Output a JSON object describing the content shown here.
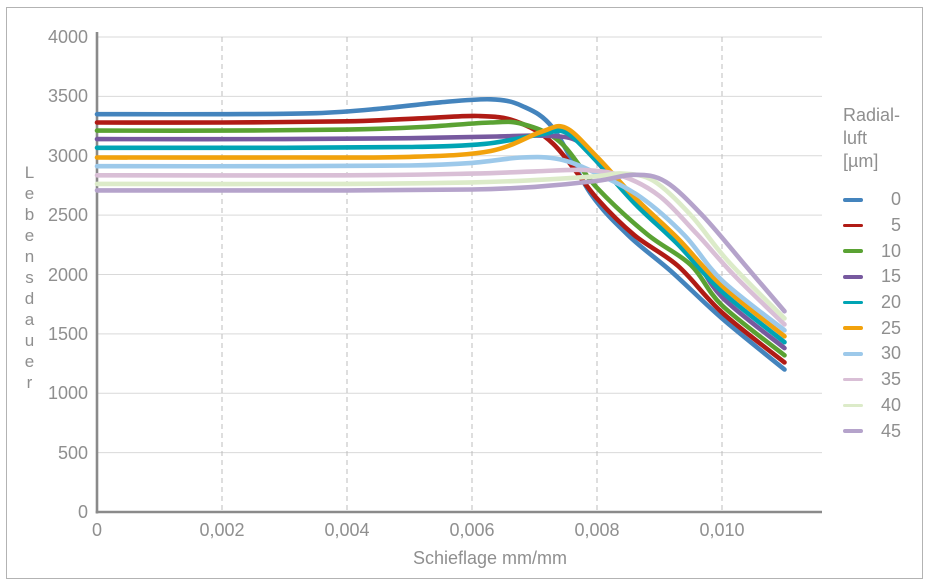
{
  "chart_data": {
    "type": "line",
    "title": "",
    "xlabel": "Schieflage mm/mm",
    "ylabel": "Lebensdauer",
    "xlim": [
      0,
      0.0116
    ],
    "ylim": [
      0,
      4000
    ],
    "grid": {
      "horizontal": "solid",
      "vertical": "dashed"
    },
    "x_ticks": [
      {
        "v": 0,
        "label": "0"
      },
      {
        "v": 0.002,
        "label": "0,002"
      },
      {
        "v": 0.004,
        "label": "0,004"
      },
      {
        "v": 0.006,
        "label": "0,006"
      },
      {
        "v": 0.008,
        "label": "0,008"
      },
      {
        "v": 0.01,
        "label": "0,010"
      }
    ],
    "y_ticks": [
      {
        "v": 0,
        "label": "0"
      },
      {
        "v": 500,
        "label": "500"
      },
      {
        "v": 1000,
        "label": "1000"
      },
      {
        "v": 1500,
        "label": "1500"
      },
      {
        "v": 2000,
        "label": "2000"
      },
      {
        "v": 2500,
        "label": "2500"
      },
      {
        "v": 3000,
        "label": "3000"
      },
      {
        "v": 3500,
        "label": "3500"
      },
      {
        "v": 4000,
        "label": "4000"
      }
    ],
    "legend": {
      "title_lines": [
        "Radial-",
        "luft",
        "[µm]"
      ],
      "position": "right"
    },
    "series": [
      {
        "label": "0",
        "color": "#4484bd",
        "points": [
          [
            0,
            3350
          ],
          [
            0.002,
            3350
          ],
          [
            0.0035,
            3358
          ],
          [
            0.0045,
            3395
          ],
          [
            0.0055,
            3450
          ],
          [
            0.0063,
            3475
          ],
          [
            0.0068,
            3420
          ],
          [
            0.0073,
            3230
          ],
          [
            0.0079,
            2680
          ],
          [
            0.0085,
            2330
          ],
          [
            0.0092,
            2020
          ],
          [
            0.01,
            1630
          ],
          [
            0.011,
            1200
          ]
        ]
      },
      {
        "label": "5",
        "color": "#b01b15",
        "points": [
          [
            0,
            3280
          ],
          [
            0.002,
            3280
          ],
          [
            0.004,
            3290
          ],
          [
            0.0052,
            3315
          ],
          [
            0.0061,
            3335
          ],
          [
            0.0067,
            3290
          ],
          [
            0.0073,
            3100
          ],
          [
            0.008,
            2640
          ],
          [
            0.0086,
            2330
          ],
          [
            0.0093,
            2070
          ],
          [
            0.01,
            1680
          ],
          [
            0.011,
            1260
          ]
        ]
      },
      {
        "label": "10",
        "color": "#5aa233",
        "points": [
          [
            0,
            3212
          ],
          [
            0.002,
            3212
          ],
          [
            0.004,
            3220
          ],
          [
            0.0052,
            3242
          ],
          [
            0.0063,
            3280
          ],
          [
            0.0068,
            3268
          ],
          [
            0.0074,
            3120
          ],
          [
            0.008,
            2730
          ],
          [
            0.0088,
            2340
          ],
          [
            0.0095,
            2080
          ],
          [
            0.01,
            1740
          ],
          [
            0.011,
            1320
          ]
        ]
      },
      {
        "label": "15",
        "color": "#77599f",
        "points": [
          [
            0,
            3140
          ],
          [
            0.003,
            3140
          ],
          [
            0.005,
            3148
          ],
          [
            0.0064,
            3162
          ],
          [
            0.0072,
            3168
          ],
          [
            0.0077,
            3120
          ],
          [
            0.0081,
            2890
          ],
          [
            0.0088,
            2500
          ],
          [
            0.0095,
            2180
          ],
          [
            0.01,
            1810
          ],
          [
            0.011,
            1380
          ]
        ]
      },
      {
        "label": "20",
        "color": "#00a4b4",
        "points": [
          [
            0,
            3067
          ],
          [
            0.003,
            3067
          ],
          [
            0.005,
            3074
          ],
          [
            0.0062,
            3100
          ],
          [
            0.0071,
            3180
          ],
          [
            0.0075,
            3195
          ],
          [
            0.008,
            2950
          ],
          [
            0.0086,
            2600
          ],
          [
            0.0093,
            2250
          ],
          [
            0.01,
            1855
          ],
          [
            0.011,
            1430
          ]
        ]
      },
      {
        "label": "25",
        "color": "#f2a20c",
        "points": [
          [
            0,
            2985
          ],
          [
            0.003,
            2985
          ],
          [
            0.005,
            2990
          ],
          [
            0.0063,
            3040
          ],
          [
            0.0071,
            3200
          ],
          [
            0.0075,
            3235
          ],
          [
            0.008,
            2990
          ],
          [
            0.0086,
            2650
          ],
          [
            0.0093,
            2300
          ],
          [
            0.01,
            1905
          ],
          [
            0.011,
            1480
          ]
        ]
      },
      {
        "label": "30",
        "color": "#9dc9ea",
        "points": [
          [
            0,
            2912
          ],
          [
            0.003,
            2912
          ],
          [
            0.005,
            2918
          ],
          [
            0.006,
            2940
          ],
          [
            0.0068,
            2985
          ],
          [
            0.0074,
            2970
          ],
          [
            0.008,
            2850
          ],
          [
            0.0087,
            2650
          ],
          [
            0.0094,
            2330
          ],
          [
            0.01,
            1950
          ],
          [
            0.011,
            1530
          ]
        ]
      },
      {
        "label": "35",
        "color": "#d9bfd6",
        "points": [
          [
            0,
            2835
          ],
          [
            0.004,
            2835
          ],
          [
            0.006,
            2850
          ],
          [
            0.007,
            2868
          ],
          [
            0.0078,
            2880
          ],
          [
            0.0084,
            2830
          ],
          [
            0.009,
            2660
          ],
          [
            0.0096,
            2340
          ],
          [
            0.0102,
            1990
          ],
          [
            0.011,
            1580
          ]
        ]
      },
      {
        "label": "40",
        "color": "#dcebc9",
        "points": [
          [
            0,
            2763
          ],
          [
            0.004,
            2763
          ],
          [
            0.006,
            2776
          ],
          [
            0.007,
            2795
          ],
          [
            0.008,
            2828
          ],
          [
            0.0084,
            2850
          ],
          [
            0.0089,
            2790
          ],
          [
            0.0095,
            2500
          ],
          [
            0.0101,
            2110
          ],
          [
            0.011,
            1630
          ]
        ]
      },
      {
        "label": "45",
        "color": "#b5a3cb",
        "points": [
          [
            0,
            2708
          ],
          [
            0.004,
            2708
          ],
          [
            0.006,
            2716
          ],
          [
            0.007,
            2738
          ],
          [
            0.008,
            2788
          ],
          [
            0.0086,
            2840
          ],
          [
            0.0091,
            2780
          ],
          [
            0.0097,
            2490
          ],
          [
            0.0104,
            2060
          ],
          [
            0.011,
            1690
          ]
        ]
      }
    ],
    "styles": {
      "axis_color": "#8a8a8a",
      "grid_color": "#d9d9d9",
      "grid_dash_color": "#bdbdbd",
      "text_color": "#8f8f8f",
      "line_width": 4.6
    }
  }
}
